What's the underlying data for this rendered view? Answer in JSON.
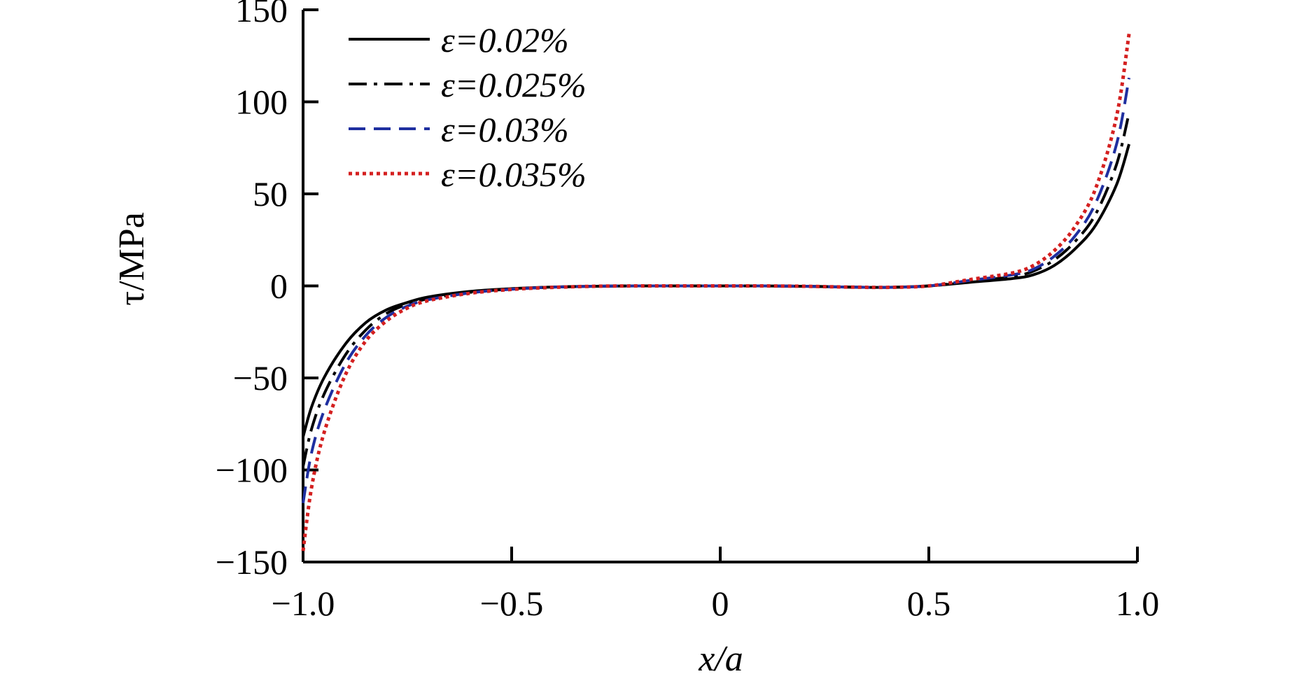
{
  "chart_data": {
    "type": "line",
    "xlabel": "x/a",
    "ylabel": "τ/MPa",
    "xlim": [
      -1.0,
      1.0
    ],
    "ylim": [
      -150,
      150
    ],
    "x_ticks": [
      "−1.0",
      "−0.5",
      "0",
      "0.5",
      "1.0"
    ],
    "x_tick_values": [
      -1.0,
      -0.5,
      0,
      0.5,
      1.0
    ],
    "y_ticks": [
      "150",
      "100",
      "50",
      "0",
      "−50",
      "−100",
      "−150"
    ],
    "y_tick_values": [
      150,
      100,
      50,
      0,
      -50,
      -100,
      -150
    ],
    "grid": false,
    "legend_position": "top-left",
    "series": [
      {
        "name": "ε=0.02%",
        "style": "solid",
        "color": "#000000",
        "x": [
          -1.0,
          -0.98,
          -0.95,
          -0.9,
          -0.85,
          -0.8,
          -0.75,
          -0.7,
          -0.6,
          -0.5,
          -0.4,
          -0.3,
          -0.2,
          -0.1,
          0,
          0.1,
          0.2,
          0.3,
          0.4,
          0.5,
          0.6,
          0.7,
          0.75,
          0.8,
          0.85,
          0.9,
          0.95,
          0.98
        ],
        "y": [
          -82,
          -66,
          -50,
          -32,
          -20,
          -13,
          -9,
          -6,
          -3,
          -1.5,
          -0.6,
          -0.2,
          0,
          0,
          0,
          0,
          -0.2,
          -0.6,
          -0.8,
          0,
          2,
          4,
          6,
          11,
          20,
          33,
          55,
          77
        ]
      },
      {
        "name": "ε=0.025%",
        "style": "dashdot",
        "color": "#000000",
        "x": [
          -1.0,
          -0.98,
          -0.95,
          -0.9,
          -0.85,
          -0.8,
          -0.75,
          -0.7,
          -0.6,
          -0.5,
          -0.4,
          -0.3,
          -0.2,
          -0.1,
          0,
          0.1,
          0.2,
          0.3,
          0.4,
          0.5,
          0.6,
          0.7,
          0.75,
          0.8,
          0.85,
          0.9,
          0.95,
          0.98
        ],
        "y": [
          -98,
          -78,
          -59,
          -38,
          -24,
          -15,
          -10,
          -7,
          -3.5,
          -1.7,
          -0.7,
          -0.2,
          0,
          0,
          0,
          0,
          -0.2,
          -0.6,
          -0.8,
          0,
          2.5,
          5,
          8,
          14,
          24,
          39,
          66,
          94
        ]
      },
      {
        "name": "ε=0.03%",
        "style": "dashed",
        "color": "#1f2fa0",
        "x": [
          -1.0,
          -0.98,
          -0.95,
          -0.9,
          -0.85,
          -0.8,
          -0.75,
          -0.7,
          -0.6,
          -0.5,
          -0.4,
          -0.3,
          -0.2,
          -0.1,
          0,
          0.1,
          0.2,
          0.3,
          0.4,
          0.5,
          0.6,
          0.7,
          0.75,
          0.8,
          0.85,
          0.9,
          0.95,
          0.98
        ],
        "y": [
          -118,
          -91,
          -68,
          -43,
          -27,
          -17,
          -11,
          -7.5,
          -3.8,
          -1.8,
          -0.7,
          -0.2,
          0,
          0,
          0,
          0,
          -0.2,
          -0.6,
          -0.8,
          0,
          3,
          6,
          9,
          16,
          27,
          45,
          77,
          113
        ]
      },
      {
        "name": "ε=0.035%",
        "style": "dotted",
        "color": "#d42020",
        "x": [
          -1.0,
          -0.98,
          -0.95,
          -0.9,
          -0.85,
          -0.8,
          -0.75,
          -0.7,
          -0.6,
          -0.5,
          -0.4,
          -0.3,
          -0.2,
          -0.1,
          0,
          0.1,
          0.2,
          0.3,
          0.4,
          0.5,
          0.6,
          0.7,
          0.75,
          0.8,
          0.85,
          0.9,
          0.95,
          0.98
        ],
        "y": [
          -144,
          -110,
          -80,
          -49,
          -30,
          -19,
          -12,
          -8,
          -4,
          -1.9,
          -0.8,
          -0.2,
          0,
          0,
          0,
          0,
          -0.2,
          -0.6,
          -0.8,
          0,
          3.5,
          7,
          11,
          19,
          32,
          53,
          92,
          137
        ]
      }
    ]
  }
}
